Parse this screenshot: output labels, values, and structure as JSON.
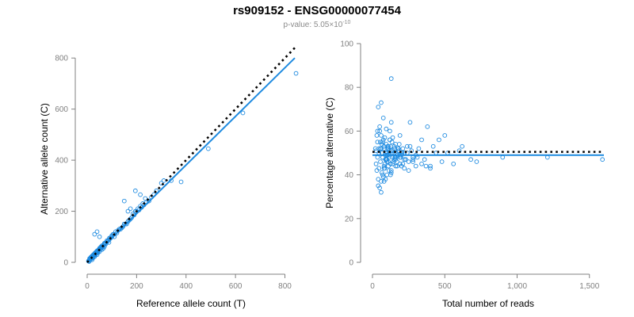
{
  "header": {
    "title": "rs909152 - ENSG00000077454",
    "pvalue_prefix": "p-value: 5.05×10",
    "pvalue_exponent": "-10"
  },
  "colors": {
    "points": "#1f8be0",
    "fit": "#1f8be0",
    "reference": "#000000",
    "axis": "#808080"
  },
  "chart_data": [
    {
      "type": "scatter",
      "id": "left",
      "xlabel": "Reference allele count (T)",
      "ylabel": "Alternative allele count (C)",
      "xlim": [
        0,
        840
      ],
      "ylim": [
        0,
        810
      ],
      "xticks": [
        0,
        200,
        400,
        600,
        800
      ],
      "xtick_labels": [
        "0",
        "200",
        "400",
        "600",
        "800"
      ],
      "yticks": [
        0,
        200,
        400,
        600,
        800
      ],
      "ytick_labels": [
        "0",
        "200",
        "400",
        "600",
        "800"
      ],
      "fit_line": {
        "x": [
          0,
          840
        ],
        "y": [
          0,
          800
        ]
      },
      "reference_line": {
        "x": [
          0,
          840
        ],
        "y": [
          0,
          840
        ]
      },
      "x": [
        5,
        8,
        10,
        12,
        15,
        18,
        20,
        22,
        25,
        28,
        30,
        32,
        35,
        38,
        40,
        42,
        45,
        48,
        50,
        52,
        55,
        58,
        60,
        62,
        65,
        68,
        70,
        72,
        75,
        78,
        80,
        85,
        90,
        95,
        100,
        105,
        110,
        115,
        120,
        130,
        140,
        150,
        160,
        170,
        180,
        190,
        200,
        210,
        220,
        230,
        240,
        250,
        10,
        15,
        20,
        25,
        30,
        35,
        40,
        45,
        50,
        55,
        60,
        70,
        80,
        90,
        100,
        20,
        30,
        40,
        50,
        60,
        70,
        8,
        12,
        18,
        24,
        33,
        44,
        66,
        88,
        110,
        125,
        135,
        145,
        155,
        165,
        175,
        185,
        195,
        205,
        215,
        225,
        260,
        270,
        280,
        300,
        310,
        340,
        380,
        490,
        630,
        845,
        30,
        40,
        50,
        150,
        165,
        175,
        195,
        215,
        235
      ],
      "y": [
        5,
        8,
        10,
        15,
        15,
        20,
        20,
        25,
        25,
        28,
        30,
        32,
        33,
        40,
        40,
        40,
        45,
        50,
        50,
        55,
        52,
        60,
        60,
        60,
        65,
        70,
        70,
        75,
        72,
        80,
        80,
        85,
        90,
        95,
        100,
        110,
        110,
        120,
        115,
        130,
        135,
        150,
        150,
        165,
        175,
        185,
        200,
        205,
        215,
        225,
        235,
        240,
        15,
        20,
        25,
        30,
        35,
        40,
        45,
        48,
        55,
        60,
        65,
        75,
        85,
        95,
        105,
        10,
        22,
        30,
        42,
        50,
        62,
        3,
        10,
        14,
        18,
        28,
        38,
        55,
        78,
        100,
        125,
        130,
        140,
        150,
        160,
        170,
        190,
        200,
        210,
        220,
        230,
        255,
        265,
        280,
        310,
        320,
        320,
        315,
        445,
        585,
        740,
        110,
        120,
        100,
        240,
        200,
        210,
        280,
        265,
        250
      ]
    },
    {
      "type": "scatter",
      "id": "right",
      "xlabel": "Total number of reads",
      "ylabel": "Percentage alternative (C)",
      "xlim": [
        0,
        1600
      ],
      "ylim": [
        0,
        100
      ],
      "xticks": [
        0,
        500,
        1000,
        1500
      ],
      "xtick_labels": [
        "0",
        "500",
        "1,000",
        "1,500"
      ],
      "yticks": [
        0,
        20,
        40,
        60,
        80,
        100
      ],
      "ytick_labels": [
        "0",
        "20",
        "40",
        "60",
        "80",
        "100"
      ],
      "fit_line": {
        "x": [
          0,
          1600
        ],
        "y": [
          49,
          49
        ]
      },
      "reference_line": {
        "x": [
          0,
          1600
        ],
        "y": [
          50.5,
          50.5
        ]
      },
      "x": [
        20,
        25,
        30,
        35,
        40,
        45,
        50,
        55,
        60,
        65,
        70,
        75,
        80,
        85,
        90,
        95,
        100,
        105,
        110,
        115,
        120,
        125,
        130,
        140,
        150,
        160,
        170,
        180,
        190,
        200,
        210,
        220,
        230,
        240,
        250,
        260,
        270,
        280,
        300,
        320,
        340,
        360,
        380,
        400,
        420,
        440,
        460,
        480,
        500,
        520,
        560,
        600,
        620,
        680,
        720,
        900,
        1210,
        1590,
        40,
        60,
        80,
        100,
        130,
        160,
        190,
        220,
        250,
        280,
        310,
        340,
        370,
        400,
        35,
        45,
        55,
        65,
        75,
        85,
        95,
        105,
        115,
        125,
        135,
        150,
        170,
        190,
        210,
        230,
        50,
        60,
        70,
        80,
        90,
        100,
        110,
        120,
        130,
        140,
        150,
        30,
        40,
        50,
        60,
        70,
        80,
        90,
        100,
        110,
        120,
        130,
        140,
        160,
        180,
        200,
        220,
        240,
        260,
        280,
        300,
        25,
        35,
        45,
        55,
        65,
        75,
        85,
        95,
        105,
        115,
        125,
        135,
        145,
        155,
        165,
        175,
        185,
        195,
        205,
        60,
        70,
        80,
        90,
        100,
        110,
        120,
        130,
        140,
        150,
        160,
        170,
        180,
        190,
        200
      ],
      "y": [
        52,
        45,
        58,
        60,
        71,
        43,
        62,
        55,
        73,
        50,
        48,
        66,
        44,
        57,
        38,
        61,
        49,
        53,
        46,
        42,
        56,
        40,
        84,
        51,
        47,
        54,
        44,
        52,
        58,
        49,
        45,
        50,
        47,
        53,
        46,
        64,
        51,
        48,
        44,
        52,
        56,
        47,
        62,
        44,
        53,
        50,
        56,
        46,
        58,
        50,
        45,
        51,
        53,
        47,
        46,
        48,
        48,
        47,
        35,
        32,
        37,
        40,
        41,
        44,
        45,
        43,
        42,
        47,
        48,
        45,
        44,
        43,
        55,
        52,
        46,
        41,
        39,
        43,
        54,
        52,
        48,
        45,
        50,
        53,
        46,
        49,
        52,
        47,
        60,
        58,
        55,
        52,
        49,
        46,
        44,
        60,
        64,
        57,
        52,
        42,
        38,
        34,
        37,
        40,
        43,
        47,
        50,
        53,
        56,
        42,
        45,
        48,
        51,
        44,
        47,
        50,
        53,
        46,
        49,
        51,
        48,
        50,
        52,
        54,
        56,
        45,
        47,
        49,
        51,
        53,
        55,
        46,
        48,
        50,
        52,
        54,
        48,
        50,
        52,
        48,
        53,
        50,
        47,
        52,
        49,
        51,
        48,
        50,
        47,
        49,
        51,
        48,
        50
      ]
    }
  ]
}
